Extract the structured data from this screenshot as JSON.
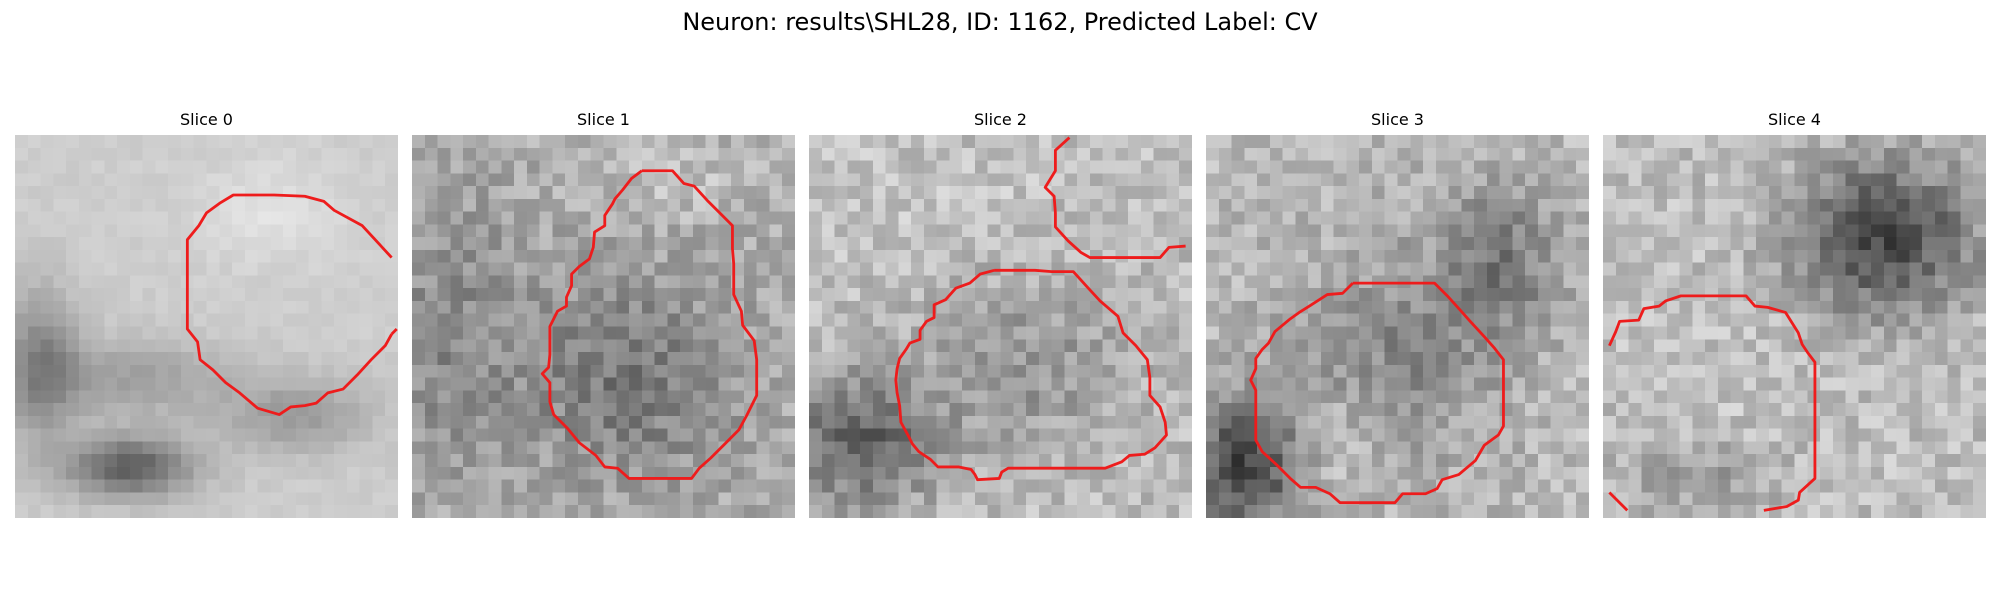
{
  "figure": {
    "title": "Neuron: results\\SHL28, ID: 1162, Predicted Label: CV"
  },
  "panels": [
    {
      "title": "Slice 0",
      "contour_color": "#ee1c1c",
      "image_description_free": true,
      "texture": "smooth"
    },
    {
      "title": "Slice 1",
      "contour_color": "#ee1c1c",
      "texture": "grainy"
    },
    {
      "title": "Slice 2",
      "contour_color": "#ee1c1c",
      "texture": "grainy"
    },
    {
      "title": "Slice 3",
      "contour_color": "#ee1c1c",
      "texture": "grainy"
    },
    {
      "title": "Slice 4",
      "contour_color": "#ee1c1c",
      "texture": "grainy"
    }
  ],
  "colors": {
    "background": "#ffffff",
    "contour": "#ee1c1c"
  }
}
